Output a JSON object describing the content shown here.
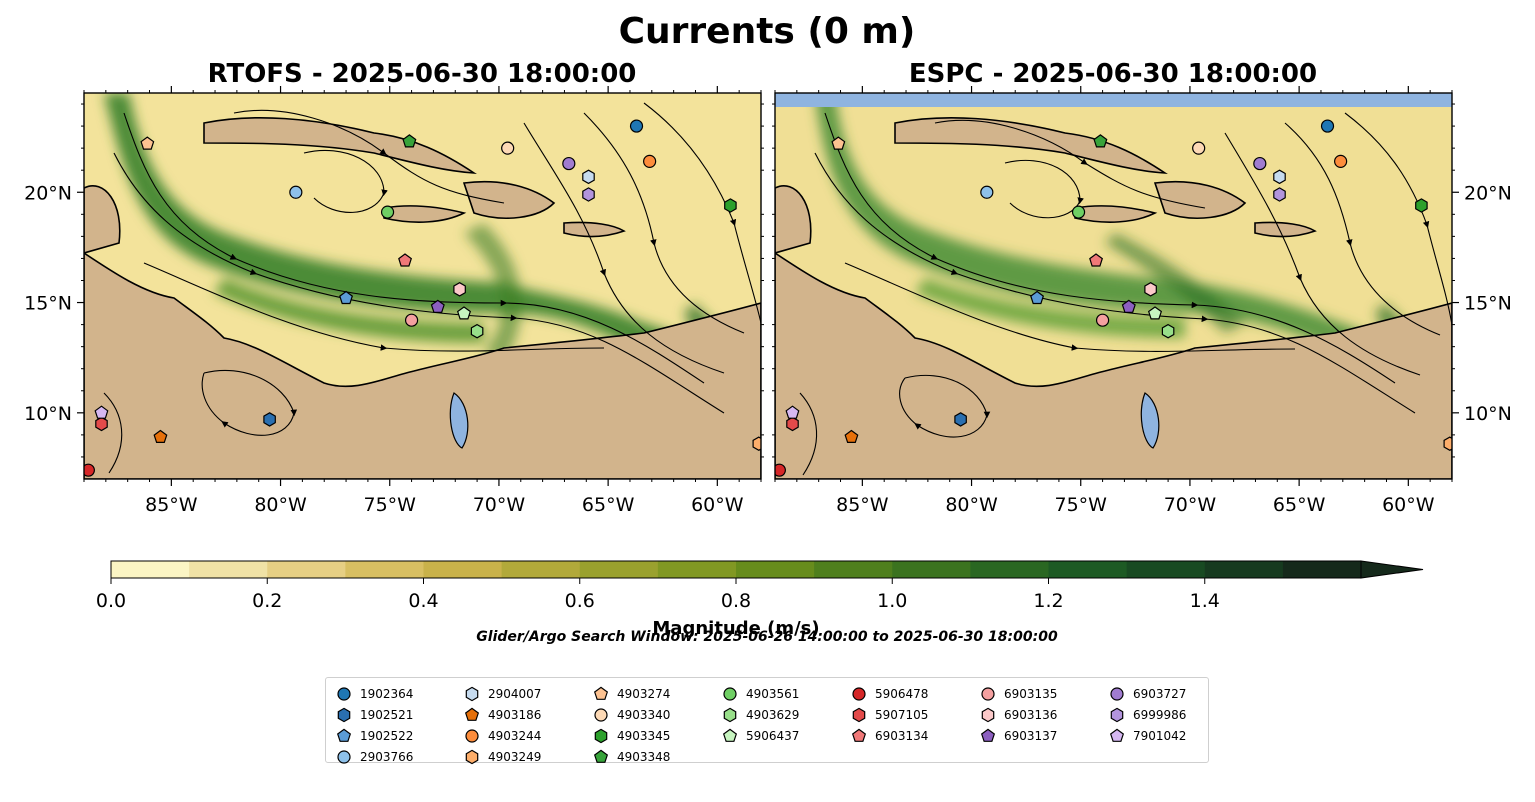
{
  "title": "Currents (0 m)",
  "panels": [
    {
      "title": "RTOFS - 2025-06-30 18:00:00",
      "tint": "#2e7d27"
    },
    {
      "title": "ESPC - 2025-06-30 18:00:00",
      "tint": "#3b8a2f"
    }
  ],
  "map": {
    "lon_range": [
      -89,
      -58
    ],
    "lat_range": [
      7,
      24.5
    ],
    "lon_ticks": [
      "85°W",
      "80°W",
      "75°W",
      "70°W",
      "65°W",
      "60°W"
    ],
    "lat_ticks": [
      "20°N",
      "15°N",
      "10°N"
    ],
    "land_color": "#d2b48c",
    "lake_color": "#8fb4e0"
  },
  "colorbar": {
    "label": "Magnitude (m/s)",
    "ticks": [
      "0.0",
      "0.2",
      "0.4",
      "0.6",
      "0.8",
      "1.0",
      "1.2",
      "1.4"
    ],
    "range": [
      0,
      1.6
    ],
    "colors": [
      "#fbf5c4",
      "#f0e2a6",
      "#e6cf84",
      "#d8bf62",
      "#c9b24a",
      "#b2a93a",
      "#9aa12e",
      "#819823",
      "#678c1c",
      "#4f7f1d",
      "#3b731f",
      "#2a6722",
      "#1d5a24",
      "#184a22",
      "#163a1f",
      "#15291b"
    ]
  },
  "search_window": "Glider/Argo Search Window: 2025-06-26 14:00:00 to 2025-06-30 18:00:00",
  "floats": [
    {
      "id": "1902364",
      "shape": "circle",
      "color": "#1f77b4",
      "lon": -63.7,
      "lat": 23.0
    },
    {
      "id": "1902521",
      "shape": "hexagon",
      "color": "#2a6fb0",
      "lon": -80.5,
      "lat": 9.7
    },
    {
      "id": "1902522",
      "shape": "pentagon",
      "color": "#5b9bd5",
      "lon": -77.0,
      "lat": 15.2
    },
    {
      "id": "2903766",
      "shape": "circle",
      "color": "#8ec1ea",
      "lon": -79.3,
      "lat": 20.0
    },
    {
      "id": "2904007",
      "shape": "hexagon",
      "color": "#c6dbef",
      "lon": -65.9,
      "lat": 20.7
    },
    {
      "id": "4903186",
      "shape": "pentagon",
      "color": "#e6700a",
      "lon": -85.5,
      "lat": 8.9
    },
    {
      "id": "4903244",
      "shape": "circle",
      "color": "#fd8d3c",
      "lon": -63.1,
      "lat": 21.4
    },
    {
      "id": "4903249",
      "shape": "hexagon",
      "color": "#fdae6b",
      "lon": -58.1,
      "lat": 8.6
    },
    {
      "id": "4903274",
      "shape": "pentagon",
      "color": "#fdc291",
      "lon": -86.1,
      "lat": 22.2
    },
    {
      "id": "4903340",
      "shape": "circle",
      "color": "#fdd9b5",
      "lon": -69.6,
      "lat": 22.0
    },
    {
      "id": "4903345",
      "shape": "hexagon",
      "color": "#2ca02c",
      "lon": -59.4,
      "lat": 19.4
    },
    {
      "id": "4903348",
      "shape": "pentagon",
      "color": "#37a33a",
      "lon": -74.1,
      "lat": 22.3
    },
    {
      "id": "4903561",
      "shape": "circle",
      "color": "#6fcf64",
      "lon": -75.1,
      "lat": 19.1
    },
    {
      "id": "4903629",
      "shape": "hexagon",
      "color": "#98df8a",
      "lon": -71.0,
      "lat": 13.7
    },
    {
      "id": "5906437",
      "shape": "pentagon",
      "color": "#c7f5c0",
      "lon": -71.6,
      "lat": 14.5
    },
    {
      "id": "5906478",
      "shape": "circle",
      "color": "#d62728",
      "lon": -88.8,
      "lat": 7.4
    },
    {
      "id": "5907105",
      "shape": "hexagon",
      "color": "#e34a4a",
      "lon": -88.2,
      "lat": 9.5
    },
    {
      "id": "6903134",
      "shape": "pentagon",
      "color": "#f07878",
      "lon": -74.3,
      "lat": 16.9
    },
    {
      "id": "6903135",
      "shape": "circle",
      "color": "#f4a0a0",
      "lon": -74.0,
      "lat": 14.2
    },
    {
      "id": "6903136",
      "shape": "hexagon",
      "color": "#fbc9c9",
      "lon": -71.8,
      "lat": 15.6
    },
    {
      "id": "6903137",
      "shape": "pentagon",
      "color": "#8c5fc0",
      "lon": -72.8,
      "lat": 14.8
    },
    {
      "id": "6903727",
      "shape": "circle",
      "color": "#a07cd0",
      "lon": -66.8,
      "lat": 21.3
    },
    {
      "id": "6999986",
      "shape": "hexagon",
      "color": "#b294dc",
      "lon": -65.9,
      "lat": 19.9
    },
    {
      "id": "7901042",
      "shape": "pentagon",
      "color": "#d6b8f2",
      "lon": -88.2,
      "lat": 10.0
    }
  ]
}
